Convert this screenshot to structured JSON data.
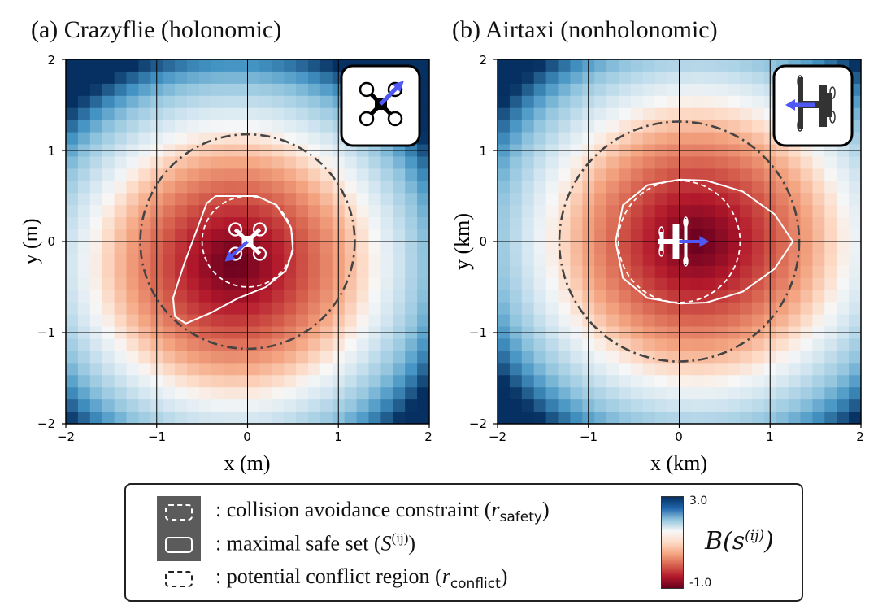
{
  "panels": [
    {
      "title": "(a) Crazyflie (holonomic)",
      "xlabel": "x (m)",
      "ylabel": "y (m)",
      "x_ticks": [
        "−2",
        "−1",
        "0",
        "1",
        "2"
      ],
      "y_ticks": [
        "2",
        "1",
        "0",
        "−1",
        "−2"
      ],
      "icon": "quadrotor-icon"
    },
    {
      "title": "(b) Airtaxi (nonholonomic)",
      "xlabel": "x (km)",
      "ylabel": "y (km)",
      "x_ticks": [
        "−2",
        "−1",
        "0",
        "1",
        "2"
      ],
      "y_ticks": [
        "2",
        "1",
        "0",
        "−1",
        "−2"
      ],
      "icon": "airtaxi-icon"
    }
  ],
  "legend": {
    "collision": ": collision avoidance constraint (r_safety)",
    "collision_text": ": collision avoidance constraint (",
    "collision_sym": "r",
    "collision_sub": "safety",
    "maximal_text": ": maximal safe set (",
    "maximal_sym": "S",
    "maximal_sup": "(ij)",
    "conflict_text": ": potential conflict region (",
    "conflict_sym": "r",
    "conflict_sub": "conflict",
    "close_paren": ")"
  },
  "colorbar": {
    "max_label": "3.0",
    "min_label": "-1.0",
    "label": "B(s^(ij))",
    "label_text": "B(s",
    "label_sup": "(ij)",
    "label_close": ")",
    "colormap": "RdBu"
  },
  "chart_data": [
    {
      "type": "heatmap",
      "title": "(a) Crazyflie (holonomic)",
      "xlabel": "x (m)",
      "ylabel": "y (m)",
      "xlim": [
        -2,
        2
      ],
      "ylim": [
        -2,
        2
      ],
      "grid": true,
      "value_range": [
        -1.0,
        3.0
      ],
      "field": {
        "center": [
          -0.15,
          -0.25
        ],
        "min_value": -1.0,
        "max_value": 3.0
      },
      "curves": {
        "conflict_circle": {
          "center": [
            0,
            0
          ],
          "radius": 1.18
        },
        "safety_circle": {
          "center": [
            0,
            0
          ],
          "radius": 0.5
        },
        "maximal_safe_set": [
          [
            -0.35,
            0.5
          ],
          [
            0.1,
            0.5
          ],
          [
            0.32,
            0.4
          ],
          [
            0.48,
            0.15
          ],
          [
            0.5,
            -0.1
          ],
          [
            0.42,
            -0.32
          ],
          [
            0.2,
            -0.5
          ],
          [
            -0.1,
            -0.62
          ],
          [
            -0.4,
            -0.78
          ],
          [
            -0.68,
            -0.9
          ],
          [
            -0.8,
            -0.82
          ],
          [
            -0.82,
            -0.62
          ],
          [
            -0.7,
            -0.25
          ],
          [
            -0.55,
            0.15
          ],
          [
            -0.45,
            0.42
          ],
          [
            -0.35,
            0.5
          ]
        ]
      },
      "agent_velocity": {
        "from": [
          0,
          0
        ],
        "to": [
          -0.25,
          -0.22
        ]
      }
    },
    {
      "type": "heatmap",
      "title": "(b) Airtaxi (nonholonomic)",
      "xlabel": "x (km)",
      "ylabel": "y (km)",
      "xlim": [
        -2,
        2
      ],
      "ylim": [
        -2,
        2
      ],
      "grid": true,
      "value_range": [
        -1.0,
        3.0
      ],
      "field": {
        "center": [
          0.2,
          0
        ],
        "min_value": -1.0,
        "max_value": 3.0
      },
      "curves": {
        "conflict_circle": {
          "center": [
            0,
            0
          ],
          "radius": 1.32
        },
        "safety_circle": {
          "center": [
            0,
            0
          ],
          "radius": 0.67
        },
        "maximal_safe_set": [
          [
            1.25,
            0
          ],
          [
            1.05,
            0.3
          ],
          [
            0.7,
            0.55
          ],
          [
            0.3,
            0.67
          ],
          [
            0,
            0.68
          ],
          [
            -0.35,
            0.62
          ],
          [
            -0.62,
            0.4
          ],
          [
            -0.7,
            0
          ],
          [
            -0.62,
            -0.4
          ],
          [
            -0.35,
            -0.62
          ],
          [
            0,
            -0.68
          ],
          [
            0.3,
            -0.67
          ],
          [
            0.7,
            -0.55
          ],
          [
            1.05,
            -0.3
          ],
          [
            1.25,
            0
          ]
        ]
      },
      "agent_velocity": {
        "from": [
          0,
          0
        ],
        "to": [
          0.33,
          0
        ]
      }
    }
  ]
}
